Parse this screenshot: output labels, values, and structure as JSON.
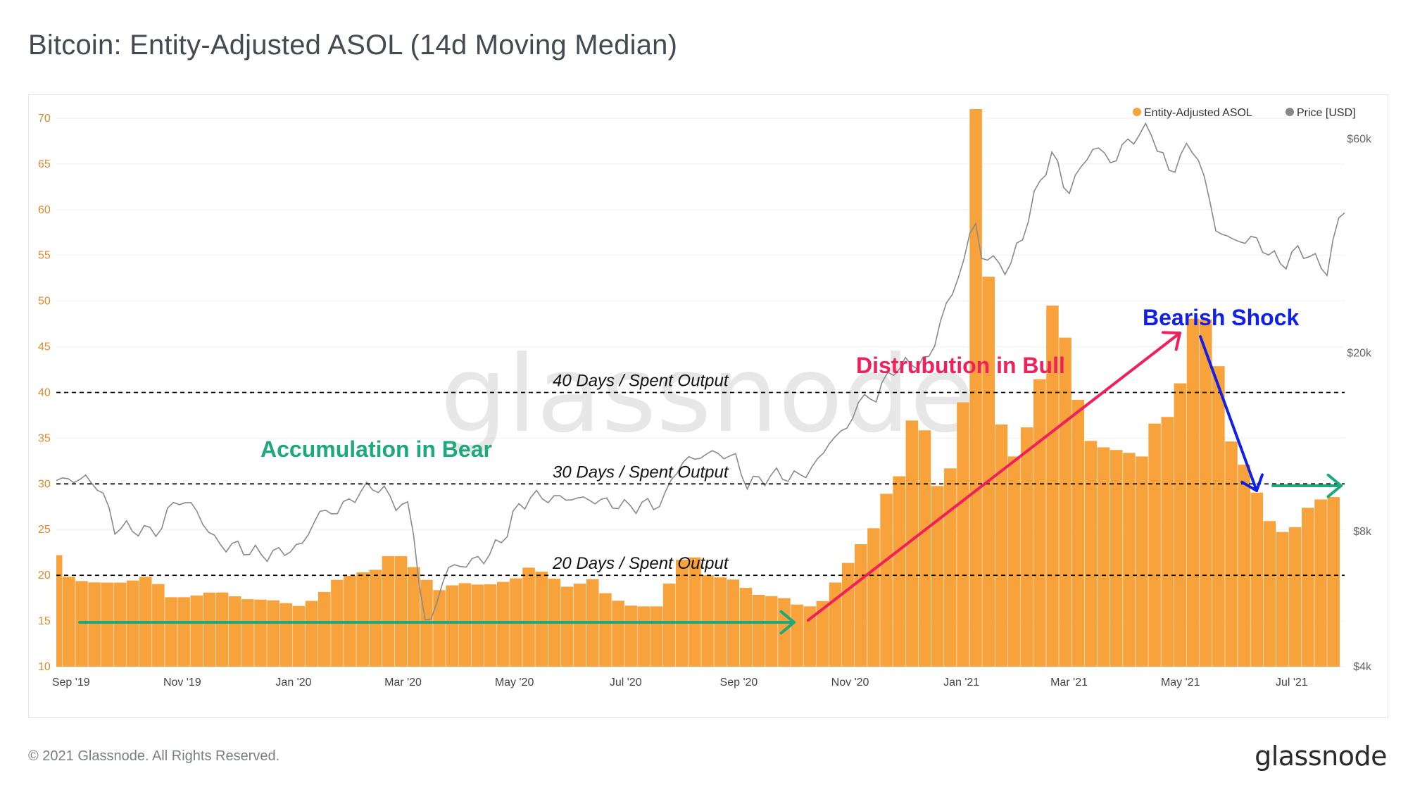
{
  "title": "Bitcoin: Entity-Adjusted ASOL (14d Moving Median)",
  "footer": "© 2021 Glassnode. All Rights Reserved.",
  "brand": "glassnode",
  "watermark": "glassnode",
  "colors": {
    "bar": "#f7a23b",
    "price": "#8a8a8a",
    "green": "#1ea97c",
    "pink": "#f0205a",
    "blue": "#1020e8"
  },
  "chart_data": {
    "type": "bar",
    "legend": [
      "Entity-Adjusted ASOL",
      "Price [USD]"
    ],
    "legend_placement": "top-right",
    "x_ticks": [
      "Sep '19",
      "Nov '19",
      "Jan '20",
      "Mar '20",
      "May '20",
      "Jul '20",
      "Sep '20",
      "Nov '20",
      "Jan '21",
      "Mar '21",
      "May '21",
      "Jul '21"
    ],
    "y_left": {
      "ticks": [
        10,
        15,
        20,
        25,
        30,
        35,
        40,
        45,
        50,
        55,
        60,
        65,
        70
      ],
      "ylim": [
        10,
        71
      ]
    },
    "y_right": {
      "label": "Price [USD]",
      "scale": "log",
      "ticks": [
        "$4k",
        "$8k",
        "$20k",
        "$60k"
      ],
      "ylim": [
        4000,
        70000
      ]
    },
    "x_range": [
      "2019-08-24",
      "2021-07-30"
    ],
    "series": [
      {
        "name": "Entity-Adjusted ASOL",
        "type": "bar",
        "points": [
          [
            "2019-08-24",
            22.2
          ],
          [
            "2019-09-01",
            19.5
          ],
          [
            "2019-09-15",
            19.2
          ],
          [
            "2019-10-01",
            19.2
          ],
          [
            "2019-10-15",
            20.0
          ],
          [
            "2019-10-25",
            17.6
          ],
          [
            "2019-11-05",
            17.6
          ],
          [
            "2019-11-20",
            18.3
          ],
          [
            "2019-12-05",
            17.4
          ],
          [
            "2019-12-20",
            17.3
          ],
          [
            "2020-01-05",
            16.6
          ],
          [
            "2020-01-15",
            17.6
          ],
          [
            "2020-01-25",
            19.5
          ],
          [
            "2020-02-05",
            20.2
          ],
          [
            "2020-02-15",
            20.6
          ],
          [
            "2020-02-22",
            22.1
          ],
          [
            "2020-03-01",
            22.1
          ],
          [
            "2020-03-10",
            20.3
          ],
          [
            "2020-03-20",
            18.3
          ],
          [
            "2020-04-01",
            19.2
          ],
          [
            "2020-04-15",
            18.9
          ],
          [
            "2020-05-01",
            19.5
          ],
          [
            "2020-05-10",
            21.0
          ],
          [
            "2020-05-20",
            20.0
          ],
          [
            "2020-06-01",
            18.5
          ],
          [
            "2020-06-12",
            19.8
          ],
          [
            "2020-06-22",
            17.6
          ],
          [
            "2020-07-05",
            16.6
          ],
          [
            "2020-07-20",
            16.6
          ],
          [
            "2020-07-28",
            20.6
          ],
          [
            "2020-08-05",
            22.8
          ],
          [
            "2020-08-15",
            20.0
          ],
          [
            "2020-08-30",
            19.5
          ],
          [
            "2020-09-10",
            17.9
          ],
          [
            "2020-09-25",
            17.6
          ],
          [
            "2020-10-05",
            16.6
          ],
          [
            "2020-10-15",
            16.6
          ],
          [
            "2020-10-25",
            19.5
          ],
          [
            "2020-11-05",
            22.9
          ],
          [
            "2020-11-15",
            25.4
          ],
          [
            "2020-11-22",
            29.5
          ],
          [
            "2020-12-01",
            31.5
          ],
          [
            "2020-12-08",
            41.0
          ],
          [
            "2020-12-15",
            32.0
          ],
          [
            "2020-12-22",
            28.1
          ],
          [
            "2020-12-28",
            33.5
          ],
          [
            "2021-01-03",
            40.0
          ],
          [
            "2021-01-06",
            56.5
          ],
          [
            "2021-01-09",
            71.0
          ],
          [
            "2021-01-14",
            60.0
          ],
          [
            "2021-01-20",
            38.0
          ],
          [
            "2021-01-30",
            33.0
          ],
          [
            "2021-02-10",
            38.0
          ],
          [
            "2021-02-20",
            49.5
          ],
          [
            "2021-02-28",
            45.5
          ],
          [
            "2021-03-10",
            35.0
          ],
          [
            "2021-03-20",
            34.0
          ],
          [
            "2021-04-01",
            33.5
          ],
          [
            "2021-04-10",
            33.0
          ],
          [
            "2021-04-15",
            36.6
          ],
          [
            "2021-04-22",
            36.6
          ],
          [
            "2021-04-30",
            39.5
          ],
          [
            "2021-05-05",
            47.0
          ],
          [
            "2021-05-12",
            49.5
          ],
          [
            "2021-05-20",
            45.5
          ],
          [
            "2021-05-28",
            35.0
          ],
          [
            "2021-06-08",
            31.0
          ],
          [
            "2021-06-18",
            26.1
          ],
          [
            "2021-06-28",
            24.4
          ],
          [
            "2021-07-05",
            25.6
          ],
          [
            "2021-07-12",
            28.1
          ],
          [
            "2021-07-25",
            28.6
          ],
          [
            "2021-07-30",
            29.8
          ]
        ]
      },
      {
        "name": "Price [USD]",
        "type": "line",
        "points": [
          [
            "2019-08-24",
            10400
          ],
          [
            "2019-09-05",
            10500
          ],
          [
            "2019-09-15",
            10300
          ],
          [
            "2019-09-25",
            8200
          ],
          [
            "2019-10-05",
            8100
          ],
          [
            "2019-10-20",
            8000
          ],
          [
            "2019-10-26",
            9300
          ],
          [
            "2019-11-05",
            9300
          ],
          [
            "2019-11-20",
            7500
          ],
          [
            "2019-12-01",
            7400
          ],
          [
            "2019-12-15",
            7100
          ],
          [
            "2019-12-25",
            7200
          ],
          [
            "2020-01-05",
            7400
          ],
          [
            "2020-01-15",
            8800
          ],
          [
            "2020-01-25",
            8900
          ],
          [
            "2020-02-05",
            9700
          ],
          [
            "2020-02-15",
            10200
          ],
          [
            "2020-02-25",
            9300
          ],
          [
            "2020-03-05",
            9000
          ],
          [
            "2020-03-12",
            5000
          ],
          [
            "2020-03-16",
            5000
          ],
          [
            "2020-03-25",
            6600
          ],
          [
            "2020-04-05",
            6800
          ],
          [
            "2020-04-15",
            7000
          ],
          [
            "2020-04-25",
            7700
          ],
          [
            "2020-05-01",
            8800
          ],
          [
            "2020-05-10",
            9600
          ],
          [
            "2020-05-20",
            9500
          ],
          [
            "2020-06-01",
            9500
          ],
          [
            "2020-06-15",
            9400
          ],
          [
            "2020-07-01",
            9100
          ],
          [
            "2020-07-15",
            9200
          ],
          [
            "2020-07-22",
            9300
          ],
          [
            "2020-07-28",
            11000
          ],
          [
            "2020-08-05",
            11600
          ],
          [
            "2020-08-18",
            12000
          ],
          [
            "2020-08-30",
            11700
          ],
          [
            "2020-09-05",
            10200
          ],
          [
            "2020-09-20",
            10700
          ],
          [
            "2020-10-05",
            10600
          ],
          [
            "2020-10-15",
            11500
          ],
          [
            "2020-10-21",
            12800
          ],
          [
            "2020-10-31",
            13600
          ],
          [
            "2020-11-05",
            15600
          ],
          [
            "2020-11-15",
            16000
          ],
          [
            "2020-11-25",
            18500
          ],
          [
            "2020-12-05",
            19000
          ],
          [
            "2020-12-15",
            19300
          ],
          [
            "2020-12-20",
            23500
          ],
          [
            "2020-12-27",
            27000
          ],
          [
            "2021-01-03",
            33000
          ],
          [
            "2021-01-08",
            40000
          ],
          [
            "2021-01-12",
            33000
          ],
          [
            "2021-01-20",
            32000
          ],
          [
            "2021-01-27",
            30500
          ],
          [
            "2021-02-05",
            38000
          ],
          [
            "2021-02-12",
            47000
          ],
          [
            "2021-02-20",
            56000
          ],
          [
            "2021-02-28",
            45000
          ],
          [
            "2021-03-10",
            54000
          ],
          [
            "2021-03-15",
            58000
          ],
          [
            "2021-03-25",
            53000
          ],
          [
            "2021-04-01",
            58800
          ],
          [
            "2021-04-14",
            63500
          ],
          [
            "2021-04-25",
            50000
          ],
          [
            "2021-05-03",
            57000
          ],
          [
            "2021-05-10",
            56500
          ],
          [
            "2021-05-15",
            47000
          ],
          [
            "2021-05-20",
            38000
          ],
          [
            "2021-05-30",
            35500
          ],
          [
            "2021-06-10",
            36000
          ],
          [
            "2021-06-20",
            33000
          ],
          [
            "2021-06-26",
            31500
          ],
          [
            "2021-07-05",
            34000
          ],
          [
            "2021-07-12",
            33000
          ],
          [
            "2021-07-20",
            30000
          ],
          [
            "2021-07-26",
            39000
          ],
          [
            "2021-07-30",
            41500
          ]
        ]
      }
    ],
    "reference_lines": [
      {
        "value": 40,
        "label": "40 Days / Spent Output"
      },
      {
        "value": 30,
        "label": "30 Days / Spent Output"
      },
      {
        "value": 20,
        "label": "20 Days / Spent Output"
      }
    ],
    "annotations": {
      "accumulation": "Accumulation in Bear",
      "distribution": "Distrubution in Bull",
      "bearish": "Bearish Shock"
    }
  }
}
